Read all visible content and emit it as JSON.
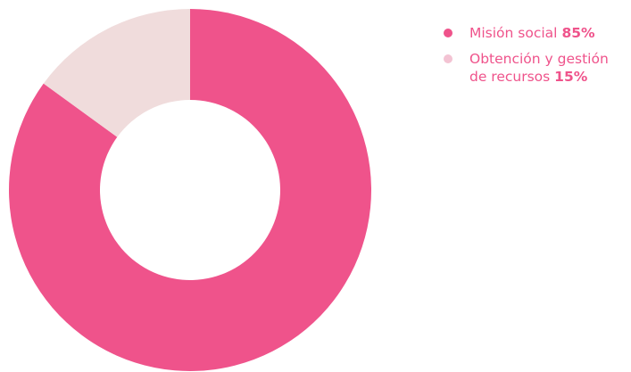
{
  "chart_data": {
    "type": "pie",
    "variant": "donut",
    "title": "",
    "categories": [
      "Misión social",
      "Obtención y gestión de recursos"
    ],
    "values": [
      85,
      15
    ],
    "value_labels": [
      "85%",
      "15%"
    ],
    "colors": [
      "#ef538b",
      "#f0dcdc"
    ],
    "legend_position": "right",
    "start": "12 o'clock, clockwise"
  },
  "legend": {
    "items": [
      {
        "label": "Misión social",
        "value": "85%",
        "color": "#ef538b",
        "text_color": "#ef538b"
      },
      {
        "label": "Obtención y gestión de recursos",
        "value": "15%",
        "color": "#f3c3d3",
        "text_color": "#ef538b"
      }
    ]
  }
}
